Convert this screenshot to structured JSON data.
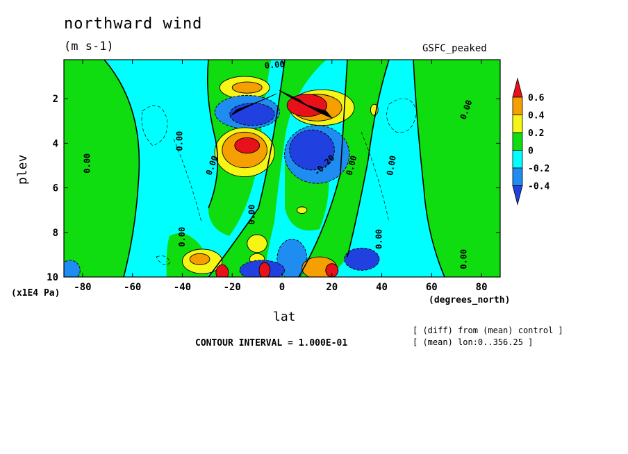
{
  "chart_data": {
    "type": "contour",
    "title": "northward wind",
    "units": "(m s-1)",
    "experiment": "GSFC_peaked",
    "xlabel": "lat",
    "x_unit": "(degrees_north)",
    "ylabel": "plev",
    "y_unit": "(x1E4 Pa)",
    "xlim": [
      -87.5,
      87.5
    ],
    "ylim": [
      10,
      0.25
    ],
    "y_inverted": true,
    "x_ticks": [
      -80,
      -60,
      -40,
      -20,
      0,
      20,
      40,
      60,
      80
    ],
    "y_ticks": [
      2,
      4,
      6,
      8,
      10
    ],
    "contour_interval_text": "CONTOUR INTERVAL = 1.000E-01",
    "notes": [
      "[ (diff) from (mean) control ]",
      "[ (mean) lon:0..356.25 ]"
    ],
    "colorbar": {
      "levels": [
        "0.6",
        "0.4",
        "0.2",
        "0",
        "-0.2",
        "-0.4"
      ],
      "colors": [
        "#e8111a",
        "#f5a000",
        "#f5f516",
        "#10dd10",
        "#00ffff",
        "#1e8cf0",
        "#2040e0"
      ]
    },
    "contour_labels": [
      {
        "text": "0.00",
        "lat": -3,
        "p": 0.5,
        "rot": -5
      },
      {
        "text": "0.00",
        "lat": -78,
        "p": 4.9,
        "rot": -90
      },
      {
        "text": "0.00",
        "lat": -41,
        "p": 3.9,
        "rot": -90
      },
      {
        "text": "0.00",
        "lat": -28,
        "p": 5.0,
        "rot": -70
      },
      {
        "text": "0.00",
        "lat": -12,
        "p": 7.2,
        "rot": -90
      },
      {
        "text": "-0.20",
        "lat": 17,
        "p": 5.0,
        "rot": -45
      },
      {
        "text": "0.00",
        "lat": 28,
        "p": 5.0,
        "rot": -75
      },
      {
        "text": "0.00",
        "lat": 44,
        "p": 5.0,
        "rot": -80
      },
      {
        "text": "0.00",
        "lat": -40,
        "p": 8.2,
        "rot": -90
      },
      {
        "text": "0.00",
        "lat": 39,
        "p": 8.3,
        "rot": -90
      },
      {
        "text": "0.00",
        "lat": 74,
        "p": 2.5,
        "rot": -70
      },
      {
        "text": "0.00",
        "lat": 73,
        "p": 9.2,
        "rot": -90
      }
    ],
    "field_features": [
      {
        "sign": "neg",
        "value": -0.2,
        "lat": -85,
        "p": 9.7,
        "rx": 4,
        "ry": 0.45
      },
      {
        "sign": "pos",
        "value": 0.2,
        "lat": -32,
        "p": 9.3,
        "rx": 8,
        "ry": 0.55
      },
      {
        "sign": "pos",
        "value": 0.4,
        "lat": -33,
        "p": 9.2,
        "rx": 4,
        "ry": 0.25
      },
      {
        "sign": "pos",
        "value": 0.6,
        "lat": -24,
        "p": 9.8,
        "rx": 2.5,
        "ry": 0.35
      },
      {
        "sign": "neg",
        "value": -0.4,
        "lat": -8,
        "p": 9.7,
        "rx": 9,
        "ry": 0.45
      },
      {
        "sign": "pos",
        "value": 0.6,
        "lat": -7,
        "p": 9.7,
        "rx": 2.2,
        "ry": 0.35
      },
      {
        "sign": "neg",
        "value": -0.2,
        "lat": 4,
        "p": 9.2,
        "rx": 6,
        "ry": 0.9
      },
      {
        "sign": "pos",
        "value": 0.4,
        "lat": 15,
        "p": 9.6,
        "rx": 7,
        "ry": 0.5
      },
      {
        "sign": "pos",
        "value": 0.6,
        "lat": 20,
        "p": 9.7,
        "rx": 2.5,
        "ry": 0.3
      },
      {
        "sign": "neg",
        "value": -0.4,
        "lat": 32,
        "p": 9.2,
        "rx": 7,
        "ry": 0.5
      },
      {
        "sign": "pos",
        "value": 0.2,
        "lat": -10,
        "p": 8.5,
        "rx": 4,
        "ry": 0.4
      },
      {
        "sign": "pos",
        "value": 0.2,
        "lat": -10,
        "p": 9.2,
        "rx": 3,
        "ry": 0.25
      },
      {
        "sign": "pos",
        "value": 0.2,
        "lat": -15,
        "p": 1.5,
        "rx": 10,
        "ry": 0.5
      },
      {
        "sign": "pos",
        "value": 0.4,
        "lat": -14,
        "p": 1.5,
        "rx": 6,
        "ry": 0.25
      },
      {
        "sign": "neg",
        "value": -0.2,
        "lat": -14,
        "p": 2.6,
        "rx": 13,
        "ry": 0.75
      },
      {
        "sign": "neg",
        "value": -0.4,
        "lat": -12,
        "p": 2.7,
        "rx": 9,
        "ry": 0.5
      },
      {
        "sign": "pos",
        "value": 0.2,
        "lat": -15,
        "p": 4.4,
        "rx": 12,
        "ry": 1.1
      },
      {
        "sign": "pos",
        "value": 0.4,
        "lat": -15,
        "p": 4.3,
        "rx": 9,
        "ry": 0.8
      },
      {
        "sign": "pos",
        "value": 0.6,
        "lat": -14,
        "p": 4.1,
        "rx": 5,
        "ry": 0.35
      },
      {
        "sign": "pos",
        "value": 0.2,
        "lat": 16,
        "p": 2.4,
        "rx": 13,
        "ry": 0.8
      },
      {
        "sign": "pos",
        "value": 0.4,
        "lat": 14,
        "p": 2.4,
        "rx": 10,
        "ry": 0.6
      },
      {
        "sign": "pos",
        "value": 0.6,
        "lat": 10,
        "p": 2.3,
        "rx": 8,
        "ry": 0.5
      },
      {
        "sign": "neg",
        "value": -0.2,
        "lat": 14,
        "p": 4.5,
        "rx": 13,
        "ry": 1.3
      },
      {
        "sign": "neg",
        "value": -0.4,
        "lat": 12,
        "p": 4.3,
        "rx": 9,
        "ry": 0.9
      },
      {
        "sign": "pos",
        "value": 0.2,
        "lat": 37,
        "p": 2.5,
        "rx": 1.5,
        "ry": 0.25
      },
      {
        "sign": "pos",
        "value": 0.2,
        "lat": 8,
        "p": 7.0,
        "rx": 2,
        "ry": 0.15
      }
    ]
  }
}
